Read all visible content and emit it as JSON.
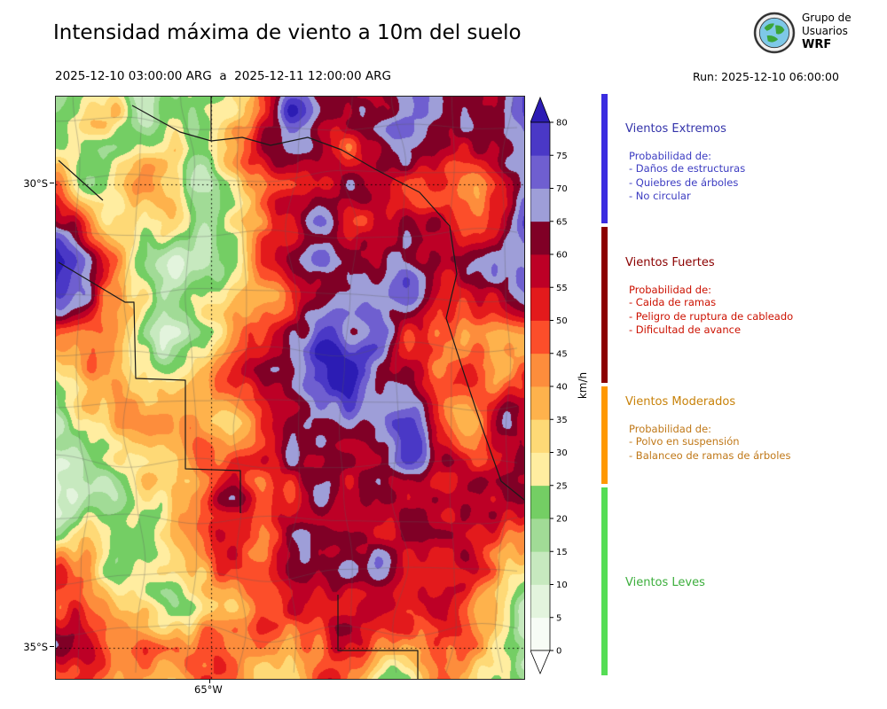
{
  "header": {
    "title": "Intensidad máxima de viento a 10m del suelo",
    "date_range": "2025-12-10 03:00:00 ARG  a  2025-12-11 12:00:00 ARG",
    "run_label": "Run: 2025-12-10 06:00:00",
    "logo": {
      "line1": "Grupo de",
      "line2": "Usuarios",
      "line3": "WRF"
    }
  },
  "map": {
    "lat_ticks": [
      "30°S",
      "35°S"
    ],
    "lon_ticks": [
      "65°W"
    ]
  },
  "colorbar": {
    "unit": "km/h",
    "ticks": [
      0,
      5,
      10,
      15,
      20,
      25,
      30,
      35,
      40,
      45,
      50,
      55,
      60,
      65,
      70,
      75,
      80
    ],
    "segment_colors": [
      "#f7fcf5",
      "#e3f4dd",
      "#c7e9bf",
      "#a1db96",
      "#74ce64",
      "#ffeda0",
      "#fed976",
      "#feb24c",
      "#fd8d3c",
      "#fc4e2a",
      "#e31a1c",
      "#bd0026",
      "#800026",
      "#9e9ed8",
      "#6f5fd0",
      "#4a38c6"
    ],
    "over_color": "#2c1cb4",
    "under_color": "#ffffff"
  },
  "legend": {
    "sections": [
      {
        "title": "Vientos Extremos",
        "title_color": "#3333aa",
        "text_color": "#3c3cc2",
        "bar_color": "#3a2ce0",
        "prob_label": "Probabilidad de:",
        "items": [
          "- Daños de estructuras",
          "- Quiebres de árboles",
          "- No circular"
        ]
      },
      {
        "title": "Vientos Fuertes",
        "title_color": "#8b0000",
        "text_color": "#cc1100",
        "bar_color": "#8b0000",
        "prob_label": "Probabilidad de:",
        "items": [
          "- Caida de ramas",
          "- Peligro de ruptura de cableado",
          "- Dificultad de avance"
        ]
      },
      {
        "title": "Vientos Moderados",
        "title_color": "#c8820a",
        "text_color": "#c07818",
        "bar_color": "#ff9800",
        "prob_label": "Probabilidad de:",
        "items": [
          "- Polvo en suspensión",
          "- Balanceo de ramas de árboles"
        ]
      },
      {
        "title": "Vientos Leves",
        "title_color": "#3cae3c",
        "text_color": "#3cae3c",
        "bar_color": "#55dd55",
        "prob_label": "",
        "items": []
      }
    ]
  }
}
